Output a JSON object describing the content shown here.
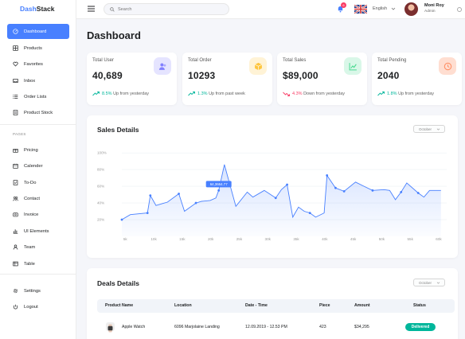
{
  "app": {
    "logo_prefix": "Dash",
    "logo_suffix": "Stack"
  },
  "sidebar": {
    "items": [
      {
        "label": "Dashboard",
        "icon": "speedometer-icon",
        "active": true
      },
      {
        "label": "Products",
        "icon": "grid-icon"
      },
      {
        "label": "Favorites",
        "icon": "heart-icon"
      },
      {
        "label": "Inbox",
        "icon": "inbox-icon"
      },
      {
        "label": "Order Lists",
        "icon": "list-icon"
      },
      {
        "label": "Product Stock",
        "icon": "stock-icon"
      }
    ],
    "pages_label": "PAGES",
    "pages": [
      {
        "label": "Pricing",
        "icon": "gift-icon"
      },
      {
        "label": "Calender",
        "icon": "calendar-icon"
      },
      {
        "label": "To-Do",
        "icon": "todo-icon"
      },
      {
        "label": "Contact",
        "icon": "contact-icon"
      },
      {
        "label": "Invoice",
        "icon": "invoice-icon"
      },
      {
        "label": "UI Elements",
        "icon": "chart-icon"
      },
      {
        "label": "Team",
        "icon": "user-icon"
      },
      {
        "label": "Table",
        "icon": "table-icon"
      }
    ],
    "bottom": [
      {
        "label": "Settings",
        "icon": "gear-icon"
      },
      {
        "label": "Logout",
        "icon": "power-icon"
      }
    ]
  },
  "topbar": {
    "search_placeholder": "Search",
    "notification_count": "6",
    "language": "English",
    "user_name": "Moni Roy",
    "user_role": "Admin"
  },
  "main": {
    "title": "Dashboard",
    "stats": [
      {
        "label": "Total User",
        "value": "40,689",
        "change": "8.5%",
        "change_text": "Up from yesterday",
        "direction": "up",
        "icon": "users-icon",
        "icon_bg": "#e5e4ff",
        "icon_color": "#8280ff"
      },
      {
        "label": "Total Order",
        "value": "10293",
        "change": "1.3%",
        "change_text": "Up from past week",
        "direction": "up",
        "icon": "box-icon",
        "icon_bg": "#fff3d6",
        "icon_color": "#fec53d"
      },
      {
        "label": "Total Sales",
        "value": "$89,000",
        "change": "4.3%",
        "change_text": "Down from yesterday",
        "direction": "down",
        "icon": "line-chart-icon",
        "icon_bg": "#d9f7e8",
        "icon_color": "#4ad991"
      },
      {
        "label": "Total Pending",
        "value": "2040",
        "change": "1.8%",
        "change_text": "Up from yesterday",
        "direction": "up",
        "icon": "clock-icon",
        "icon_bg": "#ffded1",
        "icon_color": "#ff9066"
      }
    ],
    "sales": {
      "title": "Sales Details",
      "period": "October",
      "tooltip": "64,3664.77"
    },
    "deals": {
      "title": "Deals Details",
      "period": "October",
      "columns": [
        "Product Name",
        "Location",
        "Date - Time",
        "Piece",
        "Amount",
        "Status"
      ],
      "rows": [
        {
          "product": "Apple Watch",
          "location": "6096 Marjolaine Landing",
          "datetime": "12.09.2019 - 12.53 PM",
          "piece": "423",
          "amount": "$34,295",
          "status": "Delivered"
        }
      ]
    }
  },
  "colors": {
    "accent": "#4880ff",
    "up": "#00b69b",
    "down": "#f93c65",
    "delivered": "#00b69b"
  },
  "chart_data": {
    "type": "line",
    "title": "Sales Details",
    "x_tick_labels": [
      "5k",
      "10k",
      "15k",
      "20k",
      "25k",
      "30k",
      "35k",
      "40k",
      "45k",
      "50k",
      "55k",
      "60k"
    ],
    "y_tick_labels": [
      "20%",
      "40%",
      "60%",
      "80%",
      "100%"
    ],
    "ylim": [
      0,
      100
    ],
    "xlim": [
      5,
      62
    ],
    "tooltip_label": "64,3664.77",
    "series": [
      {
        "x": [
          5,
          6.5,
          9.5,
          10,
          11,
          13,
          15,
          16,
          18,
          19,
          20.5,
          21.5,
          22,
          23,
          25,
          27,
          28,
          30,
          32,
          33,
          34,
          35,
          36,
          37,
          38,
          39,
          40.5,
          41,
          42.5,
          44,
          46,
          47.5,
          49,
          51,
          52,
          53,
          54,
          55,
          57,
          58,
          59,
          61
        ],
        "y": [
          20,
          26,
          28,
          49,
          37,
          41,
          51,
          30,
          40,
          42,
          43,
          46,
          55,
          86,
          36,
          53,
          47,
          55,
          46,
          56,
          62,
          23,
          35,
          30,
          28,
          23,
          28,
          73,
          58,
          54,
          65,
          60,
          55,
          56,
          55,
          44,
          53,
          64,
          52,
          47,
          55,
          55
        ]
      }
    ],
    "highlight_x": 22,
    "grid": "horizontal"
  }
}
